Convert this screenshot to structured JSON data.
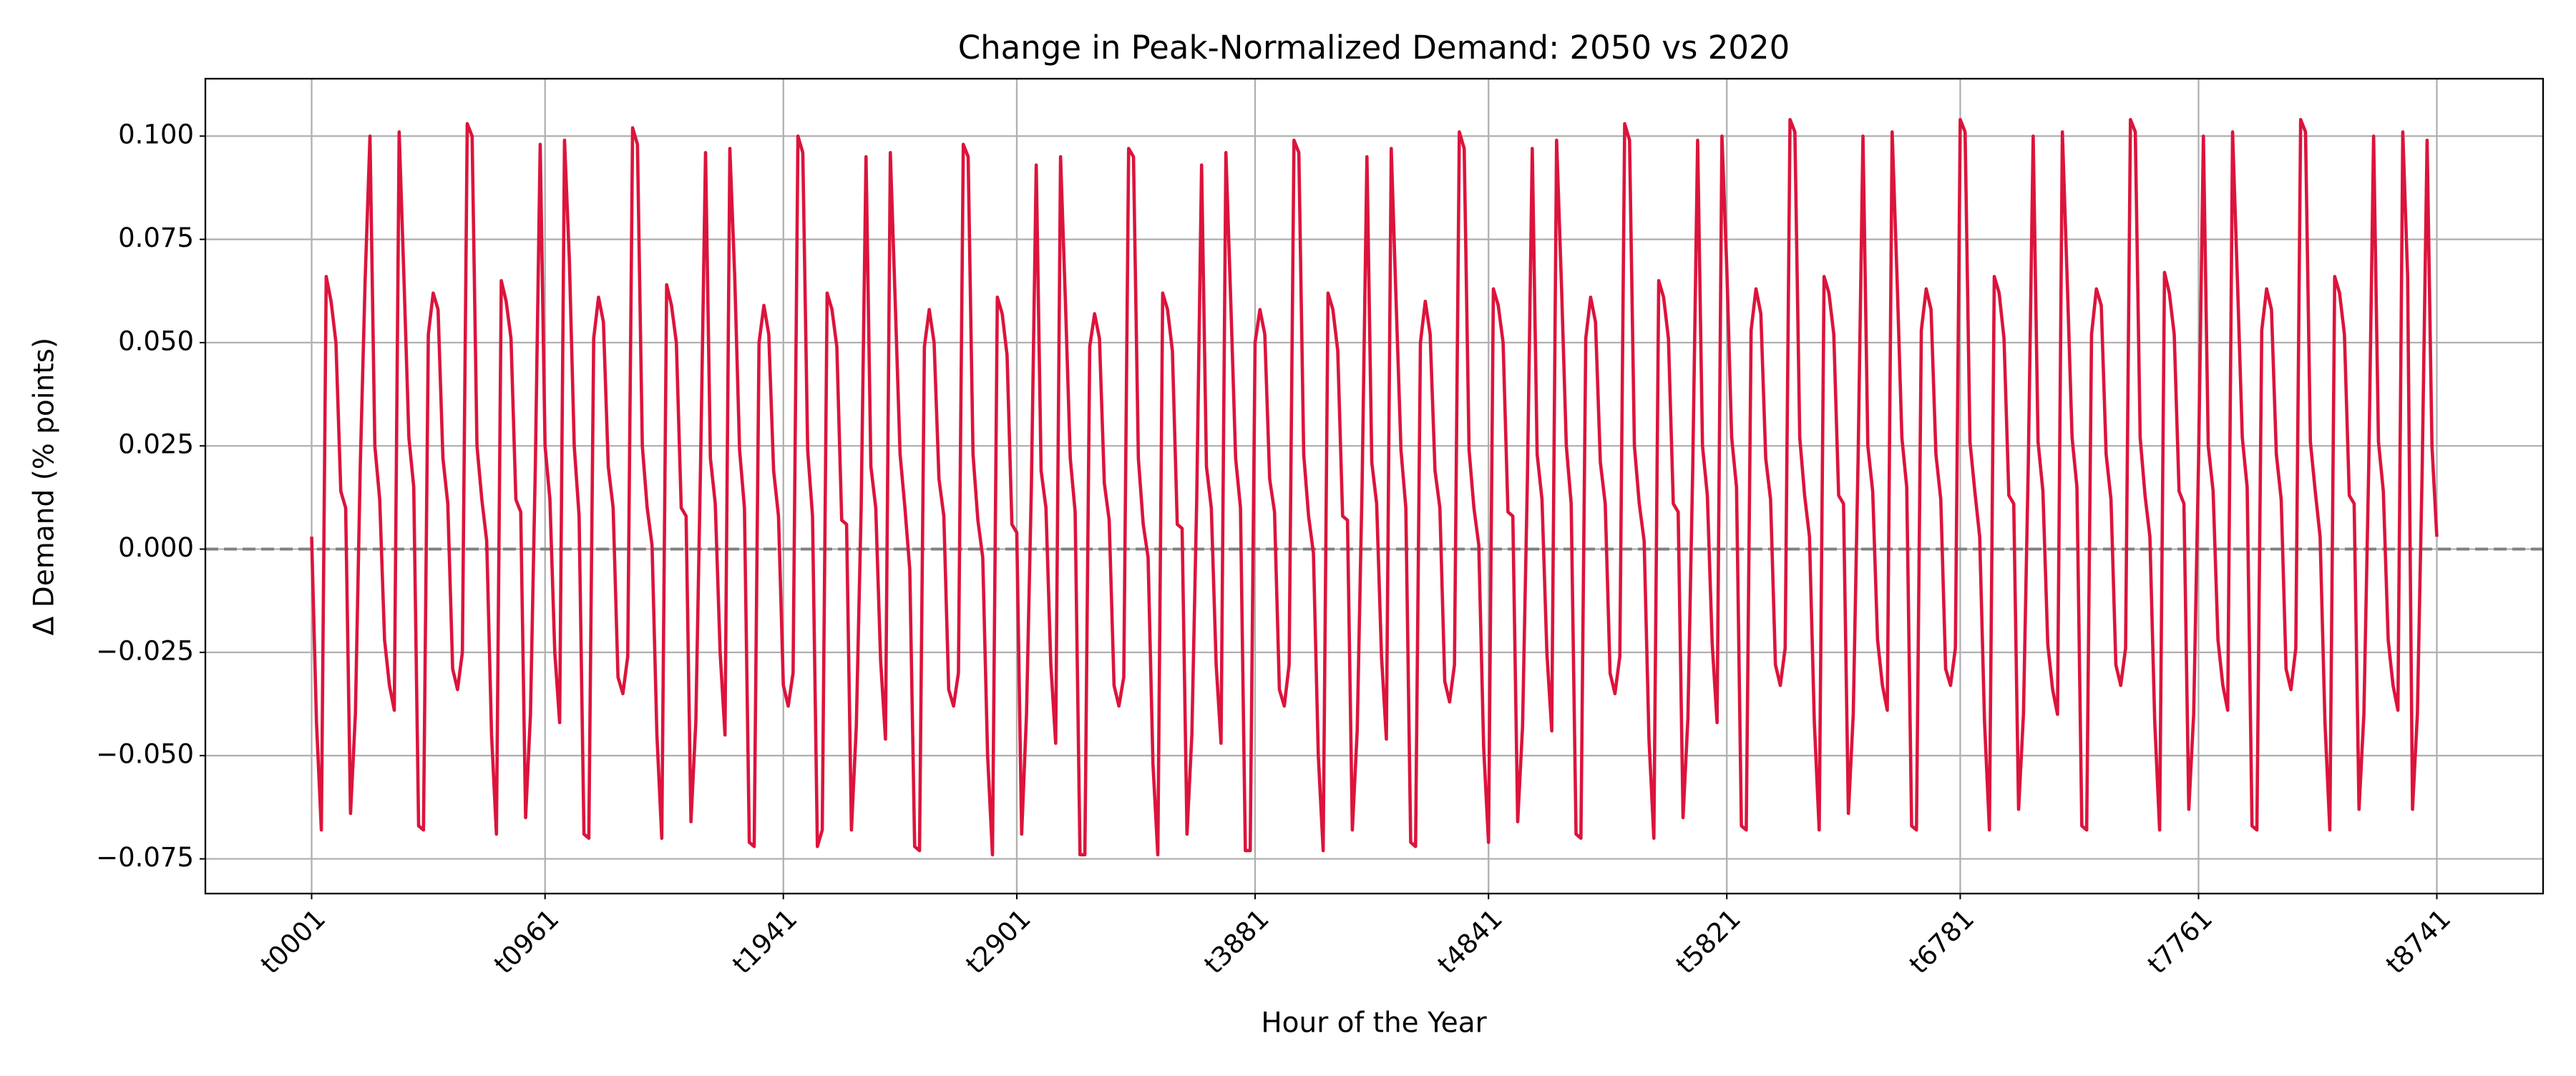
{
  "chart_data": {
    "type": "line",
    "title": "Change in Peak-Normalized Demand: 2050 vs 2020",
    "x_label": "Hour of the Year",
    "y_label": "Δ Demand (% points)",
    "categories": [
      "t0001",
      null,
      null,
      null,
      null,
      null,
      null,
      null,
      null,
      null,
      null,
      null,
      null,
      null,
      null,
      null,
      null,
      null,
      null,
      null,
      null,
      null,
      null,
      null,
      null,
      null,
      null,
      null,
      null,
      null,
      null,
      null,
      null,
      null,
      null,
      null,
      null,
      null,
      null,
      null,
      null,
      null,
      null,
      null,
      null,
      null,
      null,
      null,
      "t0961",
      null,
      null,
      null,
      null,
      null,
      null,
      null,
      null,
      null,
      null,
      null,
      null,
      null,
      null,
      null,
      null,
      null,
      null,
      null,
      null,
      null,
      null,
      null,
      null,
      null,
      null,
      null,
      null,
      null,
      null,
      null,
      null,
      null,
      null,
      null,
      null,
      null,
      null,
      null,
      null,
      null,
      null,
      null,
      null,
      null,
      null,
      null,
      null,
      "t1941",
      null,
      null,
      null,
      null,
      null,
      null,
      null,
      null,
      null,
      null,
      null,
      null,
      null,
      null,
      null,
      null,
      null,
      null,
      null,
      null,
      null,
      null,
      null,
      null,
      null,
      null,
      null,
      null,
      null,
      null,
      null,
      null,
      null,
      null,
      null,
      null,
      null,
      null,
      null,
      null,
      null,
      null,
      null,
      null,
      null,
      null,
      null,
      "t2901",
      null,
      null,
      null,
      null,
      null,
      null,
      null,
      null,
      null,
      null,
      null,
      null,
      null,
      null,
      null,
      null,
      null,
      null,
      null,
      null,
      null,
      null,
      null,
      null,
      null,
      null,
      null,
      null,
      null,
      null,
      null,
      null,
      null,
      null,
      null,
      null,
      null,
      null,
      null,
      null,
      null,
      null,
      null,
      null,
      null,
      null,
      null,
      null,
      "t3881",
      null,
      null,
      null,
      null,
      null,
      null,
      null,
      null,
      null,
      null,
      null,
      null,
      null,
      null,
      null,
      null,
      null,
      null,
      null,
      null,
      null,
      null,
      null,
      null,
      null,
      null,
      null,
      null,
      null,
      null,
      null,
      null,
      null,
      null,
      null,
      null,
      null,
      null,
      null,
      null,
      null,
      null,
      null,
      null,
      null,
      null,
      null,
      "t4841",
      null,
      null,
      null,
      null,
      null,
      null,
      null,
      null,
      null,
      null,
      null,
      null,
      null,
      null,
      null,
      null,
      null,
      null,
      null,
      null,
      null,
      null,
      null,
      null,
      null,
      null,
      null,
      null,
      null,
      null,
      null,
      null,
      null,
      null,
      null,
      null,
      null,
      null,
      null,
      null,
      null,
      null,
      null,
      null,
      null,
      null,
      null,
      null,
      "t5821",
      null,
      null,
      null,
      null,
      null,
      null,
      null,
      null,
      null,
      null,
      null,
      null,
      null,
      null,
      null,
      null,
      null,
      null,
      null,
      null,
      null,
      null,
      null,
      null,
      null,
      null,
      null,
      null,
      null,
      null,
      null,
      null,
      null,
      null,
      null,
      null,
      null,
      null,
      null,
      null,
      null,
      null,
      null,
      null,
      null,
      null,
      null,
      "t6781",
      null,
      null,
      null,
      null,
      null,
      null,
      null,
      null,
      null,
      null,
      null,
      null,
      null,
      null,
      null,
      null,
      null,
      null,
      null,
      null,
      null,
      null,
      null,
      null,
      null,
      null,
      null,
      null,
      null,
      null,
      null,
      null,
      null,
      null,
      null,
      null,
      null,
      null,
      null,
      null,
      null,
      null,
      null,
      null,
      null,
      null,
      null,
      null,
      "t7761",
      null,
      null,
      null,
      null,
      null,
      null,
      null,
      null,
      null,
      null,
      null,
      null,
      null,
      null,
      null,
      null,
      null,
      null,
      null,
      null,
      null,
      null,
      null,
      null,
      null,
      null,
      null,
      null,
      null,
      null,
      null,
      null,
      null,
      null,
      null,
      null,
      null,
      null,
      null,
      null,
      null,
      null,
      null,
      null,
      null,
      null,
      null,
      null,
      "t8741"
    ],
    "series": [
      {
        "name": "Δ Demand",
        "color": "#dc143c",
        "values": [
          0.003,
          -0.042,
          -0.068,
          0.066,
          0.06,
          0.05,
          0.014,
          0.01,
          -0.064,
          -0.04,
          0.02,
          0.065,
          0.1,
          0.025,
          0.012,
          -0.022,
          -0.033,
          -0.039,
          0.101,
          0.065,
          0.027,
          0.015,
          -0.067,
          -0.068,
          0.052,
          0.062,
          0.058,
          0.022,
          0.011,
          -0.029,
          -0.034,
          -0.025,
          0.103,
          0.1,
          0.025,
          0.012,
          0.002,
          -0.045,
          -0.069,
          0.065,
          0.06,
          0.051,
          0.012,
          0.009,
          -0.065,
          -0.04,
          0.02,
          0.098,
          0.025,
          0.012,
          -0.025,
          -0.042,
          0.099,
          0.07,
          0.025,
          0.008,
          -0.069,
          -0.07,
          0.051,
          0.061,
          0.055,
          0.02,
          0.01,
          -0.031,
          -0.035,
          -0.026,
          0.102,
          0.098,
          0.025,
          0.01,
          0.001,
          -0.045,
          -0.07,
          0.064,
          0.059,
          0.05,
          0.01,
          0.008,
          -0.066,
          -0.042,
          0.022,
          0.096,
          0.022,
          0.011,
          -0.025,
          -0.045,
          0.097,
          0.066,
          0.024,
          0.01,
          -0.071,
          -0.072,
          0.05,
          0.059,
          0.052,
          0.019,
          0.008,
          -0.033,
          -0.038,
          -0.03,
          0.1,
          0.096,
          0.024,
          0.008,
          -0.072,
          -0.068,
          0.062,
          0.058,
          0.049,
          0.007,
          0.006,
          -0.068,
          -0.043,
          0.01,
          0.095,
          0.02,
          0.01,
          -0.027,
          -0.046,
          0.096,
          0.06,
          0.023,
          0.01,
          -0.005,
          -0.072,
          -0.073,
          0.049,
          0.058,
          0.05,
          0.017,
          0.008,
          -0.034,
          -0.038,
          -0.03,
          0.098,
          0.095,
          0.023,
          0.007,
          -0.002,
          -0.05,
          -0.074,
          0.061,
          0.057,
          0.047,
          0.006,
          0.004,
          -0.069,
          -0.04,
          0.015,
          0.093,
          0.019,
          0.01,
          -0.028,
          -0.047,
          0.095,
          0.06,
          0.022,
          0.009,
          -0.074,
          -0.074,
          0.049,
          0.057,
          0.051,
          0.016,
          0.007,
          -0.033,
          -0.038,
          -0.031,
          0.097,
          0.095,
          0.022,
          0.006,
          -0.002,
          -0.052,
          -0.074,
          0.062,
          0.058,
          0.048,
          0.006,
          0.005,
          -0.069,
          -0.045,
          0.012,
          0.093,
          0.02,
          0.01,
          -0.028,
          -0.047,
          0.096,
          0.06,
          0.022,
          0.01,
          -0.073,
          -0.073,
          0.05,
          0.058,
          0.052,
          0.017,
          0.009,
          -0.034,
          -0.038,
          -0.028,
          0.099,
          0.096,
          0.023,
          0.008,
          -0.001,
          -0.05,
          -0.073,
          0.062,
          0.058,
          0.048,
          0.008,
          0.007,
          -0.068,
          -0.044,
          0.015,
          0.095,
          0.021,
          0.011,
          -0.026,
          -0.046,
          0.097,
          0.06,
          0.024,
          0.01,
          -0.071,
          -0.072,
          0.05,
          0.06,
          0.052,
          0.019,
          0.01,
          -0.032,
          -0.037,
          -0.028,
          0.101,
          0.097,
          0.024,
          0.01,
          0.001,
          -0.048,
          -0.071,
          0.063,
          0.059,
          0.05,
          0.009,
          0.008,
          -0.066,
          -0.043,
          0.017,
          0.097,
          0.023,
          0.012,
          -0.025,
          -0.044,
          0.099,
          0.064,
          0.025,
          0.011,
          -0.069,
          -0.07,
          0.051,
          0.061,
          0.055,
          0.021,
          0.011,
          -0.03,
          -0.035,
          -0.026,
          0.103,
          0.099,
          0.025,
          0.011,
          0.002,
          -0.046,
          -0.07,
          0.065,
          0.061,
          0.051,
          0.011,
          0.009,
          -0.065,
          -0.041,
          0.02,
          0.099,
          0.025,
          0.013,
          -0.023,
          -0.042,
          0.1,
          0.068,
          0.027,
          0.015,
          -0.067,
          -0.068,
          0.053,
          0.063,
          0.057,
          0.022,
          0.012,
          -0.028,
          -0.033,
          -0.024,
          0.104,
          0.101,
          0.027,
          0.013,
          0.003,
          -0.042,
          -0.068,
          0.066,
          0.062,
          0.052,
          0.013,
          0.011,
          -0.064,
          -0.04,
          0.022,
          0.1,
          0.025,
          0.014,
          -0.022,
          -0.033,
          -0.039,
          0.101,
          0.066,
          0.027,
          0.015,
          -0.067,
          -0.068,
          0.053,
          0.063,
          0.058,
          0.023,
          0.012,
          -0.029,
          -0.033,
          -0.024,
          0.104,
          0.101,
          0.026,
          0.014,
          0.003,
          -0.042,
          -0.068,
          0.066,
          0.062,
          0.051,
          0.013,
          0.011,
          -0.063,
          -0.04,
          0.021,
          0.1,
          0.026,
          0.014,
          -0.023,
          -0.034,
          -0.04,
          0.101,
          0.065,
          0.027,
          0.015,
          -0.067,
          -0.068,
          0.052,
          0.063,
          0.059,
          0.023,
          0.012,
          -0.028,
          -0.033,
          -0.024,
          0.104,
          0.101,
          0.027,
          0.013,
          0.003,
          -0.042,
          -0.068,
          0.067,
          0.062,
          0.052,
          0.014,
          0.011,
          -0.063,
          -0.04,
          0.021,
          0.1,
          0.025,
          0.014,
          -0.022,
          -0.033,
          -0.039,
          0.101,
          0.065,
          0.027,
          0.015,
          -0.067,
          -0.068,
          0.053,
          0.063,
          0.058,
          0.023,
          0.012,
          -0.029,
          -0.034,
          -0.024,
          0.104,
          0.101,
          0.026,
          0.014,
          0.003,
          -0.042,
          -0.068,
          0.066,
          0.062,
          0.052,
          0.013,
          0.011,
          -0.063,
          -0.04,
          0.02,
          0.1,
          0.026,
          0.014,
          -0.022,
          -0.033,
          -0.039,
          0.101,
          0.066,
          -0.063,
          -0.04,
          0.02,
          0.099,
          0.025,
          0.003
        ]
      }
    ],
    "ylim": [
      -0.0834,
      0.1139
    ],
    "yticks": [
      {
        "value": -0.075,
        "label": "−0.075"
      },
      {
        "value": -0.05,
        "label": "−0.050"
      },
      {
        "value": -0.025,
        "label": "−0.025"
      },
      {
        "value": 0,
        "label": "0.000"
      },
      {
        "value": 0.025,
        "label": "0.025"
      },
      {
        "value": 0.05,
        "label": "0.050"
      },
      {
        "value": 0.075,
        "label": "0.075"
      },
      {
        "value": 0.1,
        "label": "0.100"
      }
    ],
    "grid": true,
    "reference_line": {
      "value": 0,
      "color": "#808080",
      "dashed": true
    }
  }
}
